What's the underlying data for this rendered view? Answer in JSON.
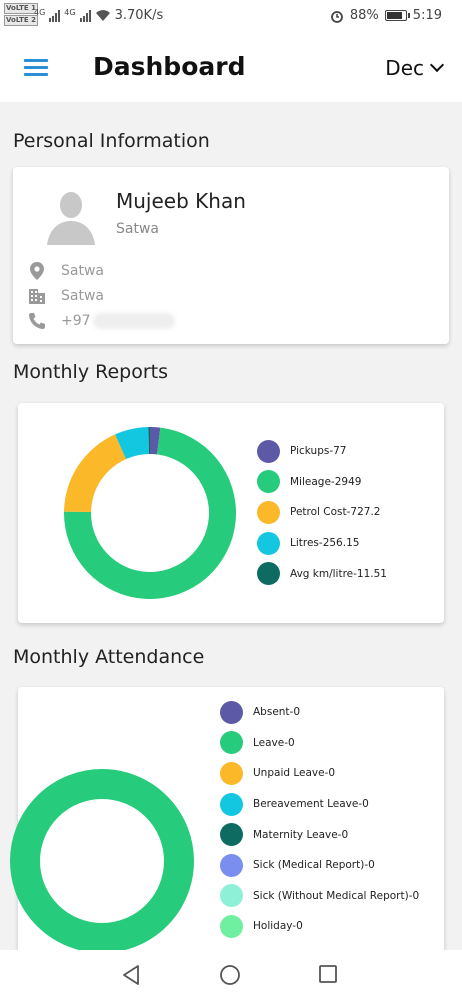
{
  "status": {
    "sim1": "VoLTE 1",
    "sim2": "VoLTE 2",
    "net1": "4G",
    "net2": "4G",
    "speed": "3.70K/s",
    "battery": "88%",
    "battery_level": 0.88,
    "time": "5:19"
  },
  "header": {
    "title": "Dashboard",
    "month": "Dec"
  },
  "personal": {
    "section_title": "Personal Information",
    "name": "Mujeeb Khan",
    "area": "Satwa",
    "location": "Satwa",
    "building": "Satwa",
    "phone_prefix": "+97"
  },
  "reports": {
    "section_title": "Monthly Reports"
  },
  "attendance": {
    "section_title": "Monthly Attendance"
  },
  "colors": {
    "accent": "#2a8fd8",
    "green": "#26cb7c",
    "indigo": "#5c5aa7",
    "amber": "#fbb829",
    "cyan": "#13c7e0",
    "teal": "#0e6b62"
  },
  "chart_data": [
    {
      "type": "pie",
      "donut": true,
      "legend": "right",
      "slices": [
        {
          "label": "Pickups-77",
          "value": 77,
          "color": "#5c5aa7"
        },
        {
          "label": "Mileage-2949",
          "value": 2949,
          "color": "#26cb7c"
        },
        {
          "label": "Petrol Cost-727.2",
          "value": 727.2,
          "color": "#fbb829"
        },
        {
          "label": "Litres-256.15",
          "value": 256.15,
          "color": "#13c7e0"
        },
        {
          "label": "Avg km/litre-11.51",
          "value": 11.51,
          "color": "#0e6b62"
        }
      ]
    },
    {
      "type": "pie",
      "donut": true,
      "legend": "right",
      "slices": [
        {
          "label": "Absent-0",
          "value": 0,
          "color": "#5c5aa7"
        },
        {
          "label": "Leave-0",
          "value": 0,
          "color": "#26cb7c"
        },
        {
          "label": "Unpaid Leave-0",
          "value": 0,
          "color": "#fbb829"
        },
        {
          "label": "Bereavement Leave-0",
          "value": 0,
          "color": "#13c7e0"
        },
        {
          "label": "Maternity Leave-0",
          "value": 0,
          "color": "#0e6b62"
        },
        {
          "label": "Sick (Medical Report)-0",
          "value": 0,
          "color": "#7a8ef0"
        },
        {
          "label": "Sick (Without Medical Report)-0",
          "value": 0,
          "color": "#8ff0d8"
        },
        {
          "label": "Holiday-0",
          "value": 0,
          "color": "#6ef0a0"
        }
      ]
    }
  ]
}
